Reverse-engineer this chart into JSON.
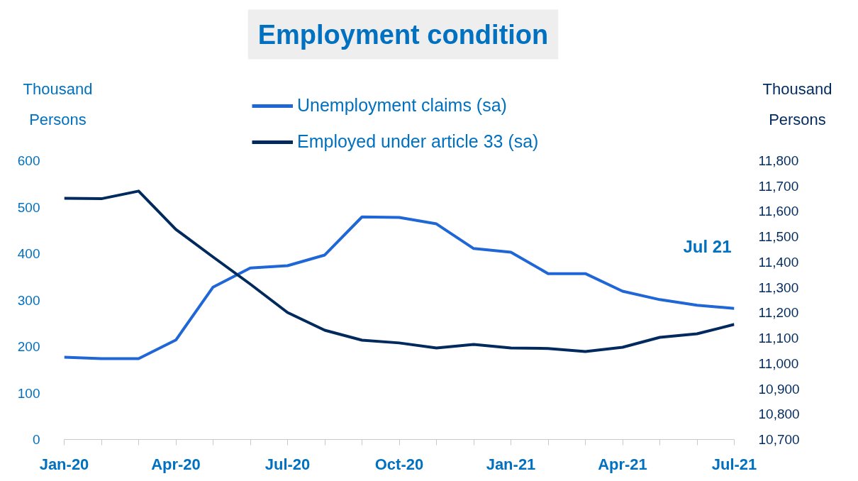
{
  "chart_data": {
    "type": "line",
    "title": "Employment condition",
    "ylabel": "Thousand Persons",
    "y2label": "Thousand Persons",
    "categories": [
      "Jan-20",
      null,
      null,
      "Apr-20",
      null,
      null,
      "Jul-20",
      null,
      null,
      "Oct-20",
      null,
      null,
      "Jan-21",
      null,
      null,
      "Apr-21",
      null,
      null,
      "Jul-21"
    ],
    "series": [
      {
        "name": "Unemployment claims (sa)",
        "color": "#1f66d6",
        "values": [
          177,
          174,
          174,
          214,
          328,
          369,
          374,
          397,
          479,
          478,
          464,
          411,
          403,
          357,
          357,
          319,
          301,
          289,
          282
        ]
      },
      {
        "name": "Employed under article 33 (sa)",
        "color": "#002a5e",
        "axis": "y2",
        "values": [
          11652,
          11650,
          11680,
          11529,
          11420,
          11313,
          11201,
          11131,
          11092,
          11081,
          11061,
          11075,
          11061,
          11059,
          11047,
          11064,
          11103,
          11117,
          11154
        ]
      }
    ],
    "ylim": [
      0,
      600
    ],
    "yticks": [
      0,
      100,
      200,
      300,
      400,
      500,
      600
    ],
    "y2lim": [
      10700,
      11800
    ],
    "y2ticks": [
      {
        "value": 10700,
        "label": "10,700"
      },
      {
        "value": 10800,
        "label": "10,800"
      },
      {
        "value": 10900,
        "label": "10,900"
      },
      {
        "value": 11000,
        "label": "11,000"
      },
      {
        "value": 11100,
        "label": "11,100"
      },
      {
        "value": 11200,
        "label": "11,200"
      },
      {
        "value": 11300,
        "label": "11,300"
      },
      {
        "value": 11400,
        "label": "11,400"
      },
      {
        "value": 11500,
        "label": "11,500"
      },
      {
        "value": 11600,
        "label": "11,600"
      },
      {
        "value": 11700,
        "label": "11,700"
      },
      {
        "value": 11800,
        "label": "11,800"
      }
    ],
    "annotations": [
      "Jul 21"
    ],
    "legend": "top",
    "grid": false
  }
}
